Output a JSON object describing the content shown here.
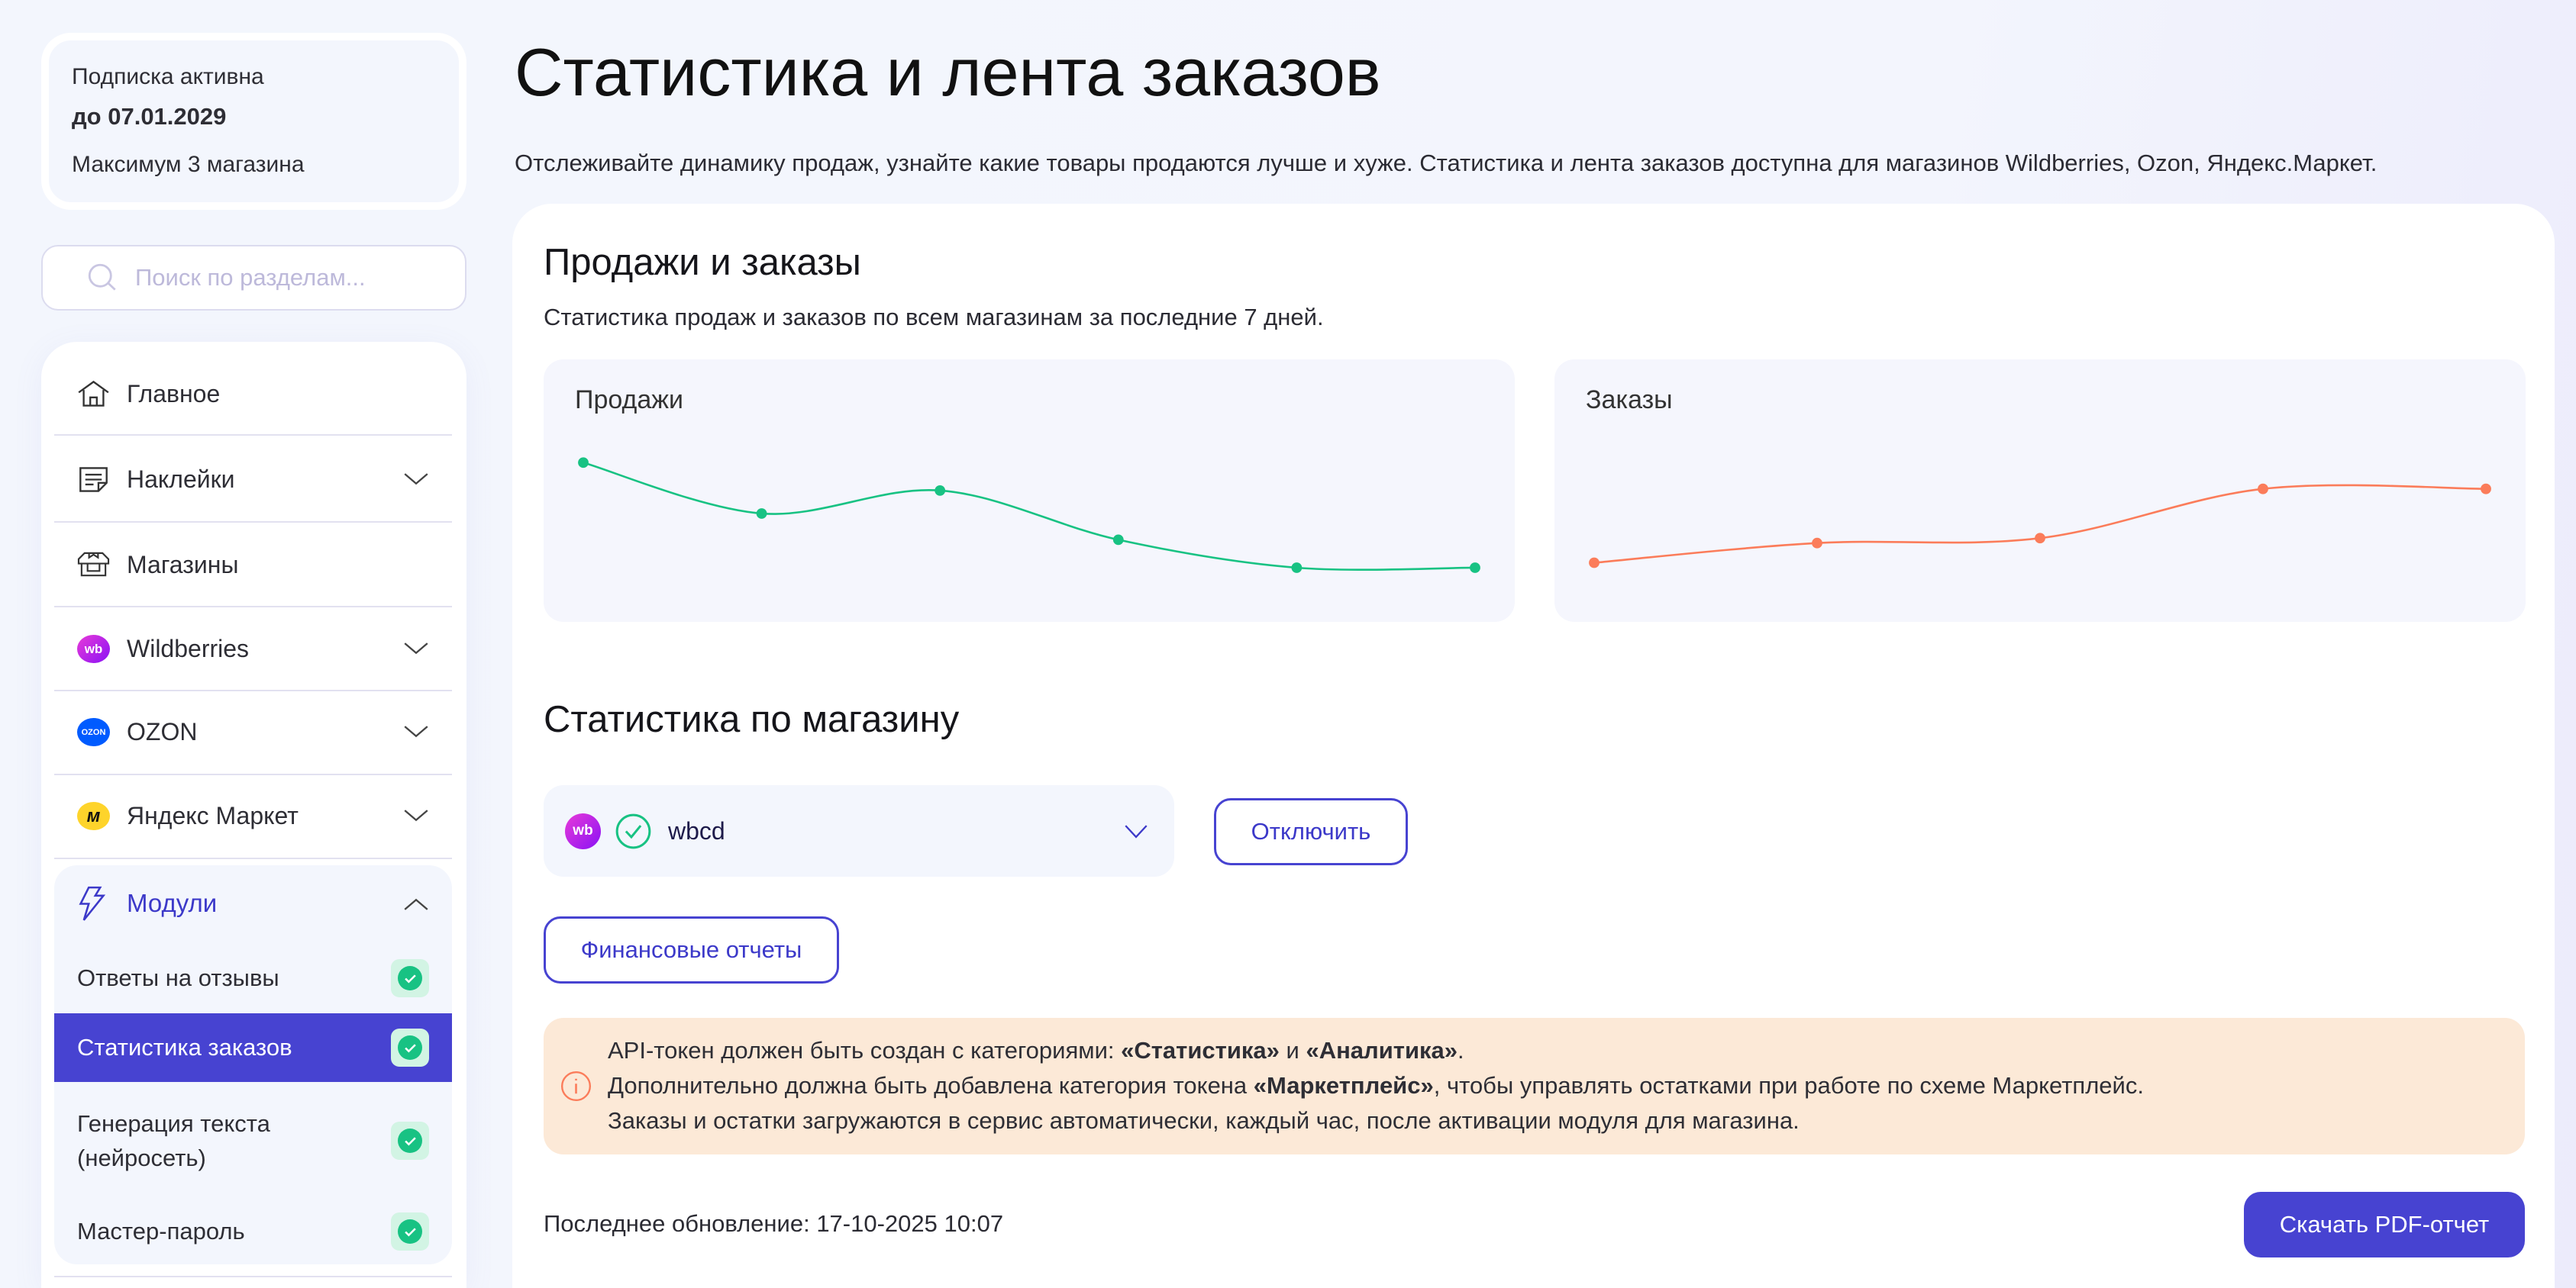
{
  "subscription": {
    "status": "Подписка активна",
    "until": "до 07.01.2029",
    "limit": "Максимум 3 магазина"
  },
  "search": {
    "placeholder": "Поиск по разделам..."
  },
  "nav": {
    "items": [
      {
        "label": "Главное",
        "icon": "home-icon"
      },
      {
        "label": "Наклейки",
        "icon": "sticker-icon"
      },
      {
        "label": "Магазины",
        "icon": "store-icon"
      },
      {
        "label": "Wildberries",
        "icon": "wb-logo"
      },
      {
        "label": "OZON",
        "icon": "ozon-logo"
      },
      {
        "label": "Яндекс Маркет",
        "icon": "yandex-market-logo"
      }
    ],
    "modules": {
      "label": "Модули",
      "icon": "lightning-icon",
      "items": [
        {
          "label": "Ответы на отзывы",
          "enabled": true
        },
        {
          "label": "Статистика заказов",
          "enabled": true,
          "active": true
        },
        {
          "label": "Генерация текста (нейросеть)",
          "enabled": true
        },
        {
          "label": "Мастер-пароль",
          "enabled": true
        }
      ]
    }
  },
  "page": {
    "title": "Статистика и лента заказов",
    "lead": "Отслеживайте динамику продаж, узнайте какие товары продаются лучше и хуже. Статистика и лента заказов доступна для магазинов Wildberries, Ozon, Яндекс.Маркет.",
    "sales_section": {
      "title": "Продажи и заказы",
      "description": "Статистика продаж и заказов по всем магазинам за последние 7 дней."
    },
    "store_section": {
      "title": "Статистика по магазину",
      "store": "wbcd",
      "disconnect": "Отключить",
      "financial": "Финансовые отчеты"
    },
    "alert": {
      "line1_pre": "API-токен должен быть создан с категориями: ",
      "line1_b1": "«Статистика»",
      "line1_mid": " и ",
      "line1_b2": "«Аналитика»",
      "line1_post": ".",
      "line2_pre": "Дополнительно должна быть добавлена категория токена ",
      "line2_b": "«Маркетплейс»",
      "line2_post": ", чтобы управлять остатками при работе по схеме Маркетплейс.",
      "line3": "Заказы и остатки загружаются в сервис автоматически, каждый час, после активации модуля для магазина."
    },
    "last_update": "Последнее обновление: 17-10-2025 10:07",
    "download": "Скачать PDF-отчет"
  },
  "colors": {
    "accent": "#4743d1",
    "sales": "#18c283",
    "orders": "#fb7c5a",
    "alert_bg": "#fce9d7"
  },
  "chart_data": [
    {
      "type": "line",
      "title": "Продажи",
      "values": [
        97,
        66,
        80,
        50,
        33,
        33
      ],
      "color": "#18c283",
      "grid": false,
      "axes": false
    },
    {
      "type": "line",
      "title": "Заказы",
      "values": [
        36,
        48,
        51,
        81,
        81
      ],
      "color": "#fb7c5a",
      "grid": false,
      "axes": false
    }
  ]
}
